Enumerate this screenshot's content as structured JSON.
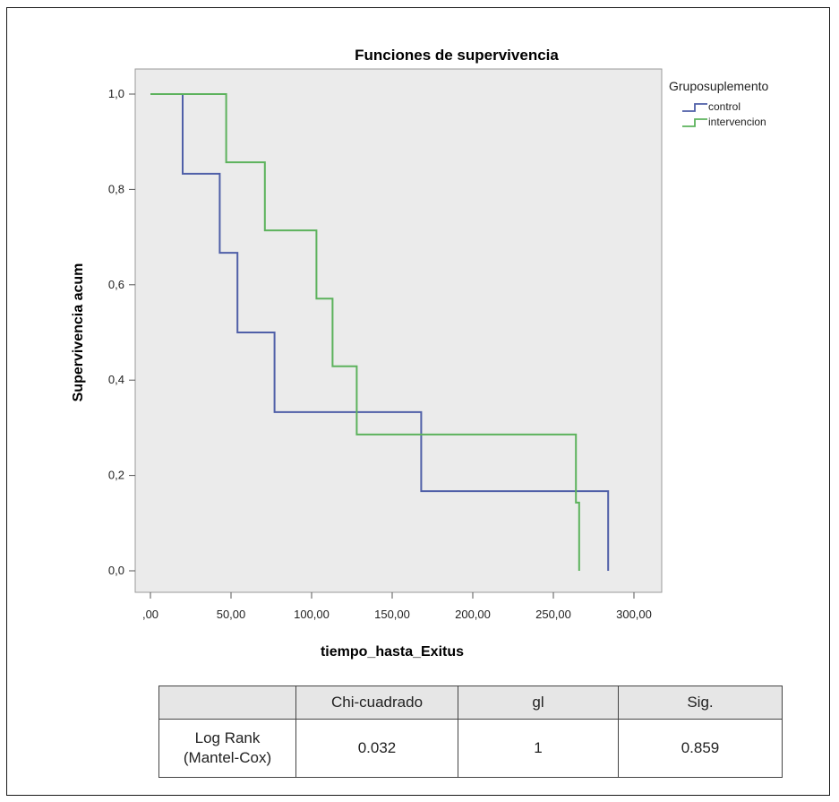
{
  "chart_data": {
    "type": "line",
    "title": "Funciones de supervivencia",
    "xlabel": "tiempo_hasta_Exitus",
    "ylabel": "Supervivencia acum",
    "xlim": [
      0,
      300
    ],
    "ylim": [
      0,
      1
    ],
    "x_ticks": [
      ",00",
      "50,00",
      "100,00",
      "150,00",
      "200,00",
      "250,00",
      "300,00"
    ],
    "x_tick_values": [
      0,
      50,
      100,
      150,
      200,
      250,
      300
    ],
    "y_ticks": [
      "0,0",
      "0,2",
      "0,4",
      "0,6",
      "0,8",
      "1,0"
    ],
    "y_tick_values": [
      0,
      0.2,
      0.4,
      0.6,
      0.8,
      1.0
    ],
    "step": true,
    "grid": false,
    "legend_title": "Gruposuplemento",
    "legend_position": "top-right",
    "series": [
      {
        "name": "control",
        "color": "#4f5fa8",
        "x": [
          0,
          20,
          43,
          54,
          77,
          168,
          284
        ],
        "y": [
          1.0,
          0.833,
          0.667,
          0.5,
          0.333,
          0.167,
          0.0
        ]
      },
      {
        "name": "intervencion",
        "color": "#5cb25c",
        "x": [
          0,
          47,
          71,
          103,
          113,
          128,
          264,
          266
        ],
        "y": [
          1.0,
          0.857,
          0.714,
          0.571,
          0.429,
          0.286,
          0.143,
          0.0
        ]
      }
    ]
  },
  "stats_table": {
    "headers": [
      "",
      "Chi-cuadrado",
      "gl",
      "Sig."
    ],
    "row": {
      "label_line1": "Log Rank",
      "label_line2": "(Mantel-Cox)",
      "chi": "0.032",
      "gl": "1",
      "sig": "0.859"
    }
  },
  "colors": {
    "plot_background": "#ebebeb",
    "control": "#4f5fa8",
    "intervencion": "#5cb25c"
  }
}
